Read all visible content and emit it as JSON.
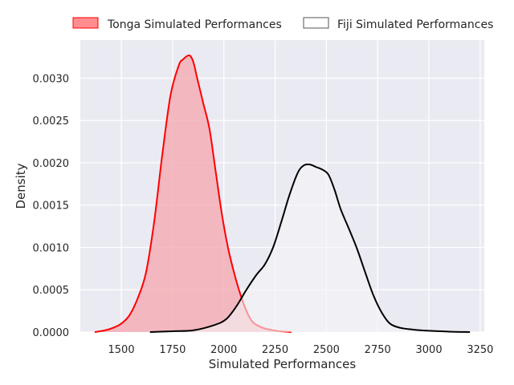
{
  "chart_data": {
    "type": "area",
    "title": "",
    "xlabel": "Simulated Performances",
    "ylabel": "Density",
    "xlim": [
      1300,
      3270
    ],
    "ylim": [
      0,
      0.00345
    ],
    "x_ticks": [
      1500,
      1750,
      2000,
      2250,
      2500,
      2750,
      3000,
      3250
    ],
    "x_tick_labels": [
      "1500",
      "1750",
      "2000",
      "2250",
      "2500",
      "2750",
      "3000",
      "3250"
    ],
    "y_ticks": [
      0,
      0.0005,
      0.001,
      0.0015,
      0.002,
      0.0025,
      0.003
    ],
    "y_tick_labels": [
      "0.0000",
      "0.0005",
      "0.0010",
      "0.0015",
      "0.0020",
      "0.0025",
      "0.0030"
    ],
    "grid": true,
    "legend_position": "top, outside plot",
    "series": [
      {
        "name": "Tonga Simulated Performances",
        "color": "#ff0000",
        "fill": "#f4a5ad",
        "filled": true,
        "points": [
          [
            1370,
            0.0
          ],
          [
            1420,
            2e-05
          ],
          [
            1460,
            5e-05
          ],
          [
            1500,
            0.0001
          ],
          [
            1540,
            0.0002
          ],
          [
            1580,
            0.0004
          ],
          [
            1620,
            0.0007
          ],
          [
            1660,
            0.0013
          ],
          [
            1700,
            0.0021
          ],
          [
            1740,
            0.0028
          ],
          [
            1780,
            0.00315
          ],
          [
            1800,
            0.00322
          ],
          [
            1830,
            0.00327
          ],
          [
            1850,
            0.0032
          ],
          [
            1870,
            0.003
          ],
          [
            1900,
            0.0027
          ],
          [
            1930,
            0.0024
          ],
          [
            1960,
            0.0019
          ],
          [
            1990,
            0.0014
          ],
          [
            2020,
            0.001
          ],
          [
            2050,
            0.0007
          ],
          [
            2080,
            0.00045
          ],
          [
            2110,
            0.00025
          ],
          [
            2140,
            0.00012
          ],
          [
            2180,
            6e-05
          ],
          [
            2220,
            3e-05
          ],
          [
            2270,
            1e-05
          ],
          [
            2330,
            0.0
          ]
        ]
      },
      {
        "name": "Fiji Simulated Performances",
        "color": "#000000",
        "fill": "#f4f4f6",
        "filled": true,
        "points": [
          [
            1640,
            0.0
          ],
          [
            1750,
            1e-05
          ],
          [
            1850,
            2e-05
          ],
          [
            1950,
            8e-05
          ],
          [
            2010,
            0.00015
          ],
          [
            2060,
            0.0003
          ],
          [
            2110,
            0.0005
          ],
          [
            2160,
            0.00068
          ],
          [
            2200,
            0.0008
          ],
          [
            2240,
            0.001
          ],
          [
            2280,
            0.0013
          ],
          [
            2320,
            0.00162
          ],
          [
            2360,
            0.00188
          ],
          [
            2390,
            0.00197
          ],
          [
            2420,
            0.00198
          ],
          [
            2450,
            0.00195
          ],
          [
            2480,
            0.00192
          ],
          [
            2510,
            0.00186
          ],
          [
            2540,
            0.00168
          ],
          [
            2570,
            0.00145
          ],
          [
            2610,
            0.00122
          ],
          [
            2650,
            0.00098
          ],
          [
            2690,
            0.0007
          ],
          [
            2730,
            0.00043
          ],
          [
            2770,
            0.00023
          ],
          [
            2810,
            0.0001
          ],
          [
            2860,
            5e-05
          ],
          [
            2920,
            3e-05
          ],
          [
            3000,
            1.5e-05
          ],
          [
            3100,
            5e-06
          ],
          [
            3200,
            0.0
          ]
        ]
      }
    ]
  }
}
